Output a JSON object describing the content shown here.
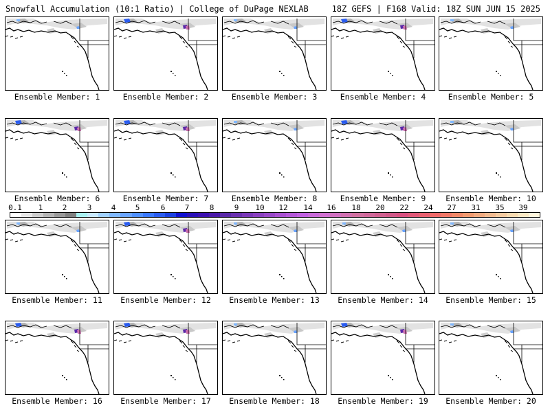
{
  "header": {
    "left": "Snowfall Accumulation (10:1 Ratio) | College of DuPage NEXLAB",
    "right": "18Z GEFS | F168 Valid: 18Z SUN JUN 15 2025"
  },
  "members": [
    {
      "label": "Ensemble Member: 1",
      "snow": "light"
    },
    {
      "label": "Ensemble Member: 2",
      "snow": "moderate"
    },
    {
      "label": "Ensemble Member: 3",
      "snow": "light"
    },
    {
      "label": "Ensemble Member: 4",
      "snow": "moderate"
    },
    {
      "label": "Ensemble Member: 5",
      "snow": "light"
    },
    {
      "label": "Ensemble Member: 6",
      "snow": "moderate"
    },
    {
      "label": "Ensemble Member: 7",
      "snow": "moderate"
    },
    {
      "label": "Ensemble Member: 8",
      "snow": "light"
    },
    {
      "label": "Ensemble Member: 9",
      "snow": "moderate"
    },
    {
      "label": "Ensemble Member: 10",
      "snow": "light"
    },
    {
      "label": "Ensemble Member: 11",
      "snow": "light"
    },
    {
      "label": "Ensemble Member: 12",
      "snow": "moderate"
    },
    {
      "label": "Ensemble Member: 13",
      "snow": "light"
    },
    {
      "label": "Ensemble Member: 14",
      "snow": "light"
    },
    {
      "label": "Ensemble Member: 15",
      "snow": "light"
    },
    {
      "label": "Ensemble Member: 16",
      "snow": "moderate"
    },
    {
      "label": "Ensemble Member: 17",
      "snow": "moderate"
    },
    {
      "label": "Ensemble Member: 18",
      "snow": "light"
    },
    {
      "label": "Ensemble Member: 19",
      "snow": "moderate"
    },
    {
      "label": "Ensemble Member: 20",
      "snow": "light"
    }
  ],
  "colorbar": {
    "ticks": [
      "0.1",
      "1",
      "2",
      "3",
      "4",
      "5",
      "6",
      "7",
      "8",
      "9",
      "10",
      "12",
      "14",
      "16",
      "18",
      "20",
      "22",
      "24",
      "27",
      "31",
      "35",
      "39"
    ],
    "colors": [
      "#ffffff",
      "#e6e6e6",
      "#cccccc",
      "#b3b3b3",
      "#999999",
      "#808080",
      "#a8f0f0",
      "#c8e8ff",
      "#a0d0ff",
      "#80b8ff",
      "#6aa4ff",
      "#5090ff",
      "#3a78ff",
      "#2a5cf0",
      "#1a40e0",
      "#1010d0",
      "#2a10b8",
      "#3c10b0",
      "#4a18a8",
      "#5a28a8",
      "#6a30b0",
      "#7a38b8",
      "#8a40c0",
      "#9848c8",
      "#a850d0",
      "#b458d8",
      "#c060e0",
      "#c86ad8",
      "#d070d0",
      "#d070c0",
      "#d070b0",
      "#d070a0",
      "#d0689a",
      "#d06090",
      "#d05888",
      "#d85080",
      "#e05878",
      "#e86070",
      "#f06a6a",
      "#f07868",
      "#f08868",
      "#f09a70",
      "#f0aa80",
      "#f0ba90",
      "#f4caa0",
      "#f8dab0",
      "#fbe8c4",
      "#fff6dc"
    ]
  }
}
